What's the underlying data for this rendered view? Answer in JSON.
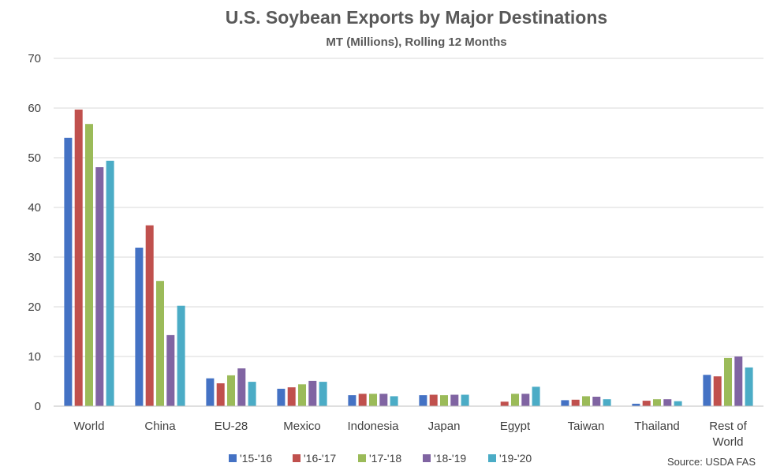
{
  "chart_data": {
    "type": "bar",
    "title": "U.S. Soybean Exports by Major Destinations",
    "subtitle": "MT (Millions), Rolling 12 Months",
    "categories": [
      [
        "World"
      ],
      [
        "China"
      ],
      [
        "EU-28"
      ],
      [
        "Mexico"
      ],
      [
        "Indonesia"
      ],
      [
        "Japan"
      ],
      [
        "Egypt"
      ],
      [
        "Taiwan"
      ],
      [
        "Thailand"
      ],
      [
        "Rest of",
        "World"
      ]
    ],
    "series": [
      {
        "name": "'15-'16",
        "color": "#4472C4",
        "values": [
          54.0,
          31.9,
          5.6,
          3.5,
          2.2,
          2.2,
          0,
          1.2,
          0.5,
          6.3
        ]
      },
      {
        "name": "'16-'17",
        "color": "#C0504D",
        "values": [
          59.7,
          36.4,
          4.6,
          3.8,
          2.5,
          2.3,
          0.9,
          1.3,
          1.1,
          6.0
        ]
      },
      {
        "name": "'17-'18",
        "color": "#9BBB59",
        "values": [
          56.8,
          25.2,
          6.2,
          4.4,
          2.5,
          2.2,
          2.5,
          2.0,
          1.4,
          9.7
        ]
      },
      {
        "name": "'18-'19",
        "color": "#8064A2",
        "values": [
          48.1,
          14.3,
          7.6,
          5.1,
          2.5,
          2.3,
          2.5,
          1.9,
          1.4,
          10.0
        ]
      },
      {
        "name": "'19-'20",
        "color": "#4BACC6",
        "values": [
          49.4,
          20.2,
          4.9,
          4.9,
          2.0,
          2.3,
          3.9,
          1.4,
          1.0,
          7.8
        ]
      }
    ],
    "ylim": [
      0,
      70
    ],
    "yticks": [
      0,
      10,
      20,
      30,
      40,
      50,
      60,
      70
    ],
    "grid": true,
    "legend": "bottom",
    "source": "Source: USDA FAS"
  }
}
